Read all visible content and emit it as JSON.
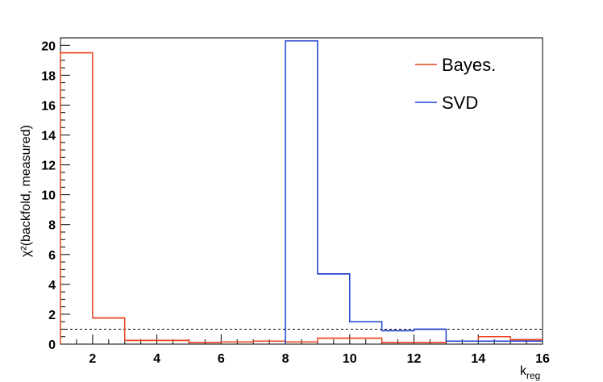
{
  "chart_data": {
    "type": "line",
    "style": "step-histogram",
    "xlabel": "k",
    "xlabel_sub": "reg",
    "ylabel": "χ²(backfold, measured)",
    "xlim": [
      1,
      16
    ],
    "ylim": [
      0,
      20.5
    ],
    "x_ticks": [
      2,
      4,
      6,
      8,
      10,
      12,
      14,
      16
    ],
    "y_ticks": [
      0,
      2,
      4,
      6,
      8,
      10,
      12,
      14,
      16,
      18,
      20
    ],
    "grid": false,
    "legend_position": "top-right",
    "reference_line": {
      "y": 1,
      "style": "dashed",
      "color": "#000000"
    },
    "bin_edges": [
      1,
      2,
      3,
      4,
      5,
      6,
      7,
      8,
      9,
      10,
      11,
      12,
      13,
      14,
      15,
      16
    ],
    "series": [
      {
        "name": "Bayes.",
        "color": "#e8431f",
        "values": [
          19.5,
          1.75,
          0.25,
          0.25,
          0.1,
          0.15,
          0.2,
          0.15,
          0.4,
          0.4,
          0.1,
          0.1,
          0.2,
          0.5,
          0.3
        ]
      },
      {
        "name": "SVD",
        "color": "#1f3fcf",
        "values": [
          null,
          null,
          null,
          null,
          null,
          null,
          null,
          20.3,
          4.7,
          1.5,
          0.9,
          1.0,
          0.2,
          0.2,
          0.2
        ]
      }
    ]
  }
}
